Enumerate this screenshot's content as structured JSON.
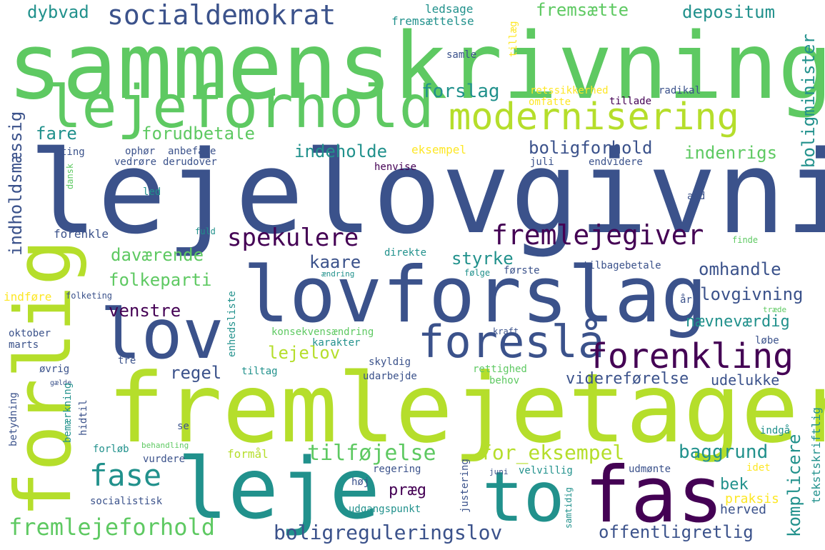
{
  "palette": [
    "#440154",
    "#3b528b",
    "#21918c",
    "#5ec962",
    "#b5de2b",
    "#fde725"
  ],
  "words": [
    {
      "text": "sammenskrivning",
      "color": "#5ec962"
    },
    {
      "text": "lejelovgivning",
      "color": "#3b528b"
    },
    {
      "text": "fremlejetager",
      "color": "#b5de2b"
    },
    {
      "text": "lovforslag",
      "color": "#3b528b"
    },
    {
      "text": "lejeforhold",
      "color": "#5ec962"
    },
    {
      "text": "forlig",
      "color": "#b5de2b"
    },
    {
      "text": "leje",
      "color": "#21918c"
    },
    {
      "text": "fas",
      "color": "#440154"
    },
    {
      "text": "lov",
      "color": "#3b528b"
    },
    {
      "text": "to",
      "color": "#21918c"
    },
    {
      "text": "modernisering",
      "color": "#b5de2b"
    },
    {
      "text": "foreslå",
      "color": "#3b528b"
    },
    {
      "text": "forenkling",
      "color": "#440154"
    },
    {
      "text": "fremlejegiver",
      "color": "#440154"
    },
    {
      "text": "socialdemokrat",
      "color": "#3b528b"
    },
    {
      "text": "spekulere",
      "color": "#440154"
    },
    {
      "text": "fase",
      "color": "#21918c"
    },
    {
      "text": "fremlejeforhold",
      "color": "#5ec962"
    },
    {
      "text": "boligreguleringslov",
      "color": "#3b528b"
    },
    {
      "text": "offentligretlig",
      "color": "#3b528b"
    },
    {
      "text": "tilføjelse",
      "color": "#5ec962"
    },
    {
      "text": "for_eksempel",
      "color": "#b5de2b"
    },
    {
      "text": "baggrund",
      "color": "#21918c"
    },
    {
      "text": "indholdsmæssig",
      "color": "#3b528b"
    },
    {
      "text": "boligminister",
      "color": "#21918c"
    },
    {
      "text": "komplicere",
      "color": "#21918c"
    },
    {
      "text": "dybvad",
      "color": "#21918c"
    },
    {
      "text": "fremsætte",
      "color": "#5ec962"
    },
    {
      "text": "depositum",
      "color": "#21918c"
    },
    {
      "text": "forslag",
      "color": "#21918c"
    },
    {
      "text": "forudbetale",
      "color": "#5ec962"
    },
    {
      "text": "fare",
      "color": "#21918c"
    },
    {
      "text": "indeholde",
      "color": "#21918c"
    },
    {
      "text": "boligforhold",
      "color": "#3b528b"
    },
    {
      "text": "indenrigs",
      "color": "#5ec962"
    },
    {
      "text": "daværende",
      "color": "#5ec962"
    },
    {
      "text": "kaare",
      "color": "#3b528b"
    },
    {
      "text": "styrke",
      "color": "#21918c"
    },
    {
      "text": "omhandle",
      "color": "#3b528b"
    },
    {
      "text": "folkeparti",
      "color": "#5ec962"
    },
    {
      "text": "lovgivning",
      "color": "#3b528b"
    },
    {
      "text": "venstre",
      "color": "#440154"
    },
    {
      "text": "nævneværdig",
      "color": "#21918c"
    },
    {
      "text": "lejelov",
      "color": "#b5de2b"
    },
    {
      "text": "regel",
      "color": "#3b528b"
    },
    {
      "text": "videreførelse",
      "color": "#3b528b"
    },
    {
      "text": "udelukke",
      "color": "#3b528b"
    },
    {
      "text": "bek",
      "color": "#21918c"
    },
    {
      "text": "præg",
      "color": "#440154"
    },
    {
      "text": "herved",
      "color": "#3b528b"
    },
    {
      "text": "praksis",
      "color": "#fde725"
    },
    {
      "text": "tekstskriftlig",
      "color": "#21918c"
    },
    {
      "text": "ledsage",
      "color": "#21918c"
    },
    {
      "text": "fremsættelse",
      "color": "#21918c"
    },
    {
      "text": "tillæg",
      "color": "#fde725"
    },
    {
      "text": "samle",
      "color": "#3b528b"
    },
    {
      "text": "retssikkerhed",
      "color": "#fde725"
    },
    {
      "text": "omfatte",
      "color": "#fde725"
    },
    {
      "text": "tillade",
      "color": "#440154"
    },
    {
      "text": "radikal",
      "color": "#3b528b"
    },
    {
      "text": "eksempel",
      "color": "#fde725"
    },
    {
      "text": "ting",
      "color": "#3b528b"
    },
    {
      "text": "ophør",
      "color": "#3b528b"
    },
    {
      "text": "anbefale",
      "color": "#3b528b"
    },
    {
      "text": "vedrøre",
      "color": "#3b528b"
    },
    {
      "text": "derudover",
      "color": "#3b528b"
    },
    {
      "text": "henvise",
      "color": "#440154"
    },
    {
      "text": "juli",
      "color": "#3b528b"
    },
    {
      "text": "endvidere",
      "color": "#3b528b"
    },
    {
      "text": "dansk",
      "color": "#5ec962"
    },
    {
      "text": "led",
      "color": "#21918c"
    },
    {
      "text": "and",
      "color": "#3b528b"
    },
    {
      "text": "forenkle",
      "color": "#3b528b"
    },
    {
      "text": "fuld",
      "color": "#21918c"
    },
    {
      "text": "finde",
      "color": "#5ec962"
    },
    {
      "text": "direkte",
      "color": "#21918c"
    },
    {
      "text": "ændring",
      "color": "#21918c"
    },
    {
      "text": "første",
      "color": "#3b528b"
    },
    {
      "text": "tilbagebetale",
      "color": "#3b528b"
    },
    {
      "text": "følge",
      "color": "#21918c"
    },
    {
      "text": "indføre",
      "color": "#fde725"
    },
    {
      "text": "folketing",
      "color": "#3b528b"
    },
    {
      "text": "enhedsliste",
      "color": "#21918c"
    },
    {
      "text": "år",
      "color": "#3b528b"
    },
    {
      "text": "træde",
      "color": "#5ec962"
    },
    {
      "text": "konsekvensændring",
      "color": "#5ec962"
    },
    {
      "text": "karakter",
      "color": "#21918c"
    },
    {
      "text": "kraft",
      "color": "#3b528b"
    },
    {
      "text": "løbe",
      "color": "#3b528b"
    },
    {
      "text": "oktober",
      "color": "#3b528b"
    },
    {
      "text": "marts",
      "color": "#3b528b"
    },
    {
      "text": "tre",
      "color": "#3b528b"
    },
    {
      "text": "skyldig",
      "color": "#3b528b"
    },
    {
      "text": "rettighed",
      "color": "#5ec962"
    },
    {
      "text": "øvrig",
      "color": "#3b528b"
    },
    {
      "text": "tiltag",
      "color": "#21918c"
    },
    {
      "text": "udarbejde",
      "color": "#3b528b"
    },
    {
      "text": "gælde",
      "color": "#3b528b"
    },
    {
      "text": "betydning",
      "color": "#3b528b"
    },
    {
      "text": "bemærkning",
      "color": "#21918c"
    },
    {
      "text": "hidtil",
      "color": "#3b528b"
    },
    {
      "text": "behov",
      "color": "#5ec962"
    },
    {
      "text": "se",
      "color": "#3b528b"
    },
    {
      "text": "indgå",
      "color": "#21918c"
    },
    {
      "text": "behandling",
      "color": "#5ec962"
    },
    {
      "text": "forløb",
      "color": "#21918c"
    },
    {
      "text": "vurdere",
      "color": "#3b528b"
    },
    {
      "text": "formål",
      "color": "#b5de2b"
    },
    {
      "text": "justering",
      "color": "#3b528b"
    },
    {
      "text": "regering",
      "color": "#3b528b"
    },
    {
      "text": "juni",
      "color": "#3b528b"
    },
    {
      "text": "velvillig",
      "color": "#21918c"
    },
    {
      "text": "udmønte",
      "color": "#3b528b"
    },
    {
      "text": "idet",
      "color": "#fde725"
    },
    {
      "text": "høj",
      "color": "#3b528b"
    },
    {
      "text": "samtidig",
      "color": "#21918c"
    },
    {
      "text": "socialistisk",
      "color": "#3b528b"
    },
    {
      "text": "udgangspunkt",
      "color": "#21918c"
    }
  ]
}
